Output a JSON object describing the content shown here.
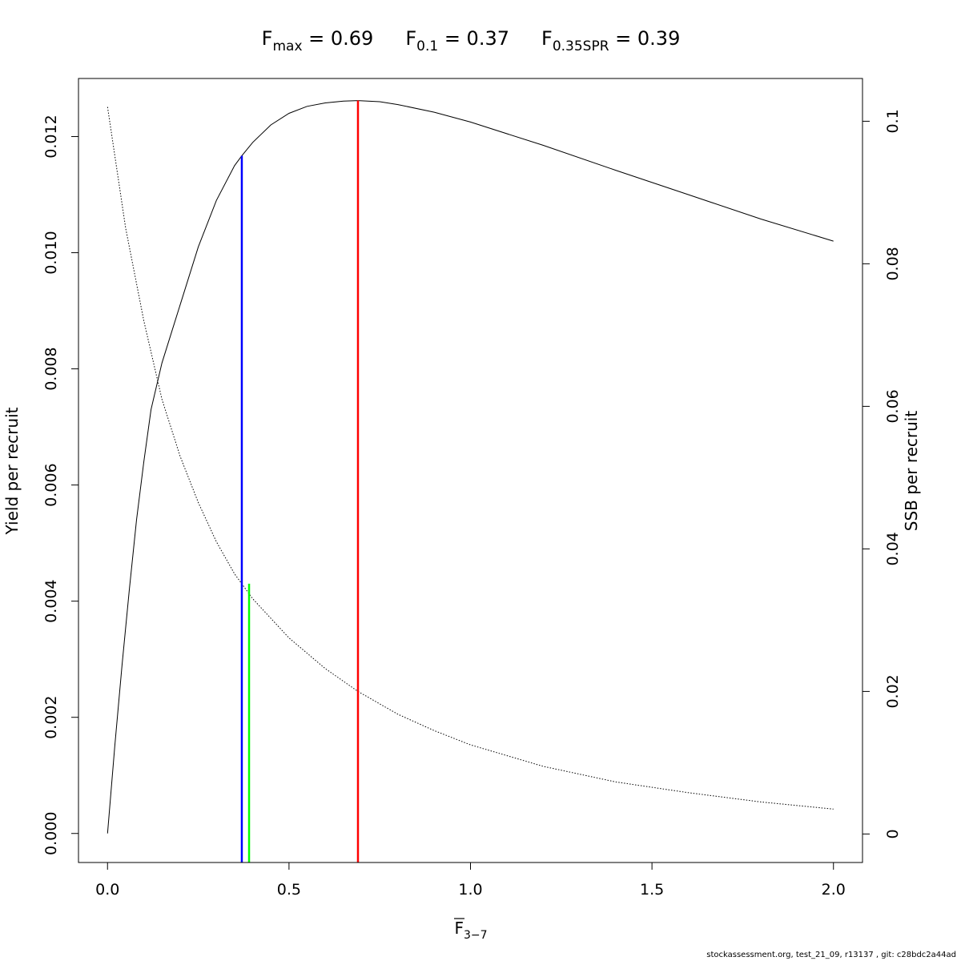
{
  "chart_data": {
    "type": "line",
    "title": {
      "parts": [
        {
          "base": "F",
          "sub": "max",
          "value": " = 0.69"
        },
        {
          "base": "F",
          "sub": "0.1",
          "value": " = 0.37"
        },
        {
          "base": "F",
          "sub": "0.35SPR",
          "value": " = 0.39"
        }
      ]
    },
    "xlabel": {
      "base": "F",
      "sub": "3−7"
    },
    "ylabel": "Yield per recruit",
    "y2label": "SSB per recruit",
    "xlim": [
      -0.08,
      2.08
    ],
    "ylim": [
      -0.0005,
      0.013
    ],
    "y2lim": [
      -0.004,
      0.106
    ],
    "x_ticks": [
      0.0,
      0.5,
      1.0,
      1.5,
      2.0
    ],
    "x_tick_labels": [
      "0.0",
      "0.5",
      "1.0",
      "1.5",
      "2.0"
    ],
    "y_ticks": [
      0.0,
      0.002,
      0.004,
      0.006,
      0.008,
      0.01,
      0.012
    ],
    "y_tick_labels": [
      "0.000",
      "0.002",
      "0.004",
      "0.006",
      "0.008",
      "0.010",
      "0.012"
    ],
    "y2_ticks": [
      0,
      0.02,
      0.04,
      0.06,
      0.08,
      0.1
    ],
    "y2_tick_labels": [
      "0",
      "0.02",
      "0.04",
      "0.06",
      "0.08",
      "0.1"
    ],
    "series": [
      {
        "axis": "left",
        "style": "solid",
        "color": "#000000",
        "x": [
          0.0,
          0.02,
          0.04,
          0.06,
          0.08,
          0.1,
          0.12,
          0.15,
          0.18,
          0.2,
          0.25,
          0.3,
          0.35,
          0.37,
          0.4,
          0.45,
          0.5,
          0.55,
          0.6,
          0.65,
          0.69,
          0.75,
          0.8,
          0.9,
          1.0,
          1.2,
          1.4,
          1.6,
          1.8,
          2.0
        ],
        "y": [
          0.0,
          0.0015,
          0.0029,
          0.0042,
          0.0054,
          0.0064,
          0.0073,
          0.0081,
          0.0087,
          0.0091,
          0.0101,
          0.0109,
          0.0115,
          0.01167,
          0.0119,
          0.0122,
          0.0124,
          0.01252,
          0.01258,
          0.01261,
          0.01262,
          0.0126,
          0.01255,
          0.01242,
          0.01225,
          0.01185,
          0.01142,
          0.011,
          0.01058,
          0.0102
        ]
      },
      {
        "axis": "right",
        "style": "dotted",
        "color": "#000000",
        "x": [
          0.0,
          0.05,
          0.1,
          0.15,
          0.2,
          0.25,
          0.3,
          0.35,
          0.4,
          0.5,
          0.6,
          0.69,
          0.8,
          0.9,
          1.0,
          1.2,
          1.4,
          1.6,
          1.8,
          2.0
        ],
        "y": [
          0.102,
          0.085,
          0.072,
          0.061,
          0.053,
          0.0465,
          0.041,
          0.0365,
          0.033,
          0.0275,
          0.0232,
          0.02,
          0.0168,
          0.0145,
          0.0125,
          0.0095,
          0.0073,
          0.0058,
          0.0045,
          0.0035
        ]
      }
    ],
    "reference_lines": [
      {
        "x": 0.37,
        "y_top": 0.01167,
        "color": "#0000ff"
      },
      {
        "x": 0.39,
        "y_top": 0.0043,
        "color": "#00ff00"
      },
      {
        "x": 0.69,
        "y_top": 0.01262,
        "color": "#ff0000"
      }
    ]
  },
  "footer": "stockassessment.org, test_21_09, r13137 , git: c28bdc2a44ad"
}
